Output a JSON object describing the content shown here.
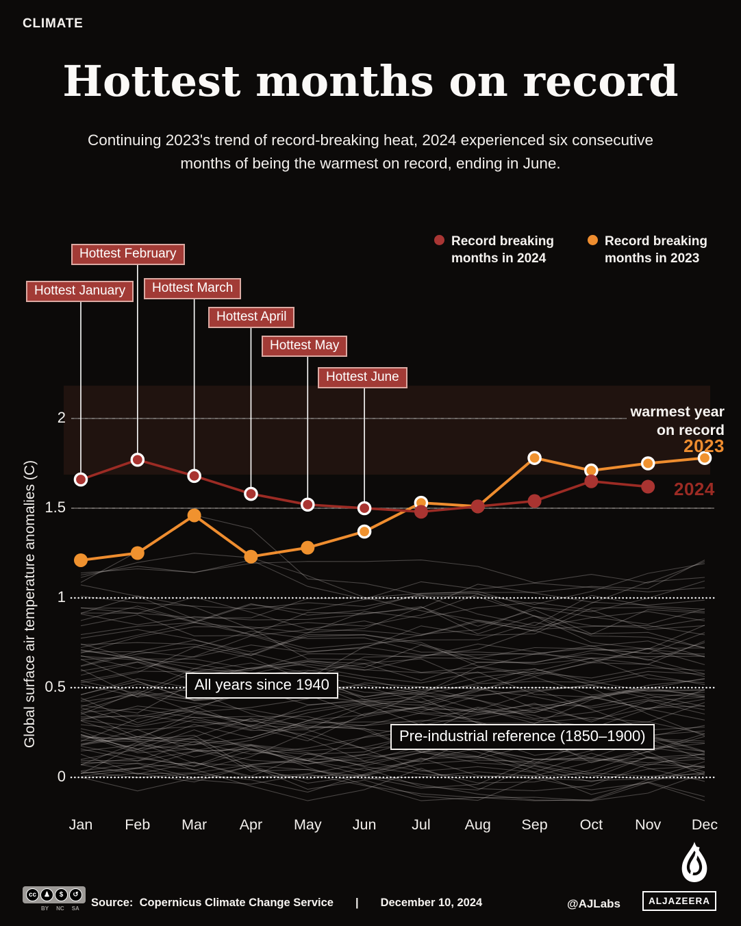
{
  "page": {
    "kicker": "CLIMATE",
    "title": "Hottest months on record",
    "subtitle": "Continuing 2023's trend of record-breaking heat, 2024 experienced six consecutive\nmonths of being the warmest on record, ending in June."
  },
  "legend": {
    "items": [
      {
        "label": "Record breaking months in 2024",
        "color": "#a93634"
      },
      {
        "label": "Record breaking months in 2023",
        "color": "#ef8d2f"
      }
    ]
  },
  "callouts": [
    {
      "label": "Hottest January",
      "month": 0
    },
    {
      "label": "Hottest February",
      "month": 1
    },
    {
      "label": "Hottest March",
      "month": 2
    },
    {
      "label": "Hottest April",
      "month": 3
    },
    {
      "label": "Hottest May",
      "month": 4
    },
    {
      "label": "Hottest June",
      "month": 5
    }
  ],
  "callout_style": {
    "bg": "#a23b36",
    "border": "#dcaaa3"
  },
  "annotations": {
    "warmest": "warmest year\non record",
    "year_2023": "2023",
    "year_2024": "2024",
    "all_years": "All years since 1940",
    "preindustrial": "Pre-industrial reference (1850–1900)"
  },
  "chart_data": {
    "type": "line",
    "title": "Hottest months on record",
    "ylabel": "Global surface air temperature anomalies (C)",
    "x_categories": [
      "Jan",
      "Feb",
      "Mar",
      "Apr",
      "May",
      "Jun",
      "Jul",
      "Aug",
      "Sep",
      "Oct",
      "Nov",
      "Dec"
    ],
    "yticks": [
      {
        "value": 2,
        "label": "2",
        "style": "solid"
      },
      {
        "value": 1.5,
        "label": "1.5",
        "style": "solid"
      },
      {
        "value": 1,
        "label": "1",
        "style": "dotted"
      },
      {
        "value": 0.5,
        "label": "0.5",
        "style": "dotted"
      },
      {
        "value": 0,
        "label": "0",
        "style": "dotted"
      }
    ],
    "ylim": [
      -0.15,
      2.25
    ],
    "series": [
      {
        "name": "2023",
        "color": "#ef8d2f",
        "dot_color": "#f0922f",
        "values": [
          1.21,
          1.25,
          1.46,
          1.23,
          1.28,
          1.37,
          1.53,
          1.51,
          1.78,
          1.71,
          1.75,
          1.78
        ],
        "record_breaking_months": [
          5,
          6,
          8,
          9,
          10,
          11
        ]
      },
      {
        "name": "2024",
        "color": "#9c2b24",
        "dot_color": "#a93431",
        "values": [
          1.66,
          1.77,
          1.68,
          1.58,
          1.52,
          1.5,
          1.48,
          1.51,
          1.54,
          1.65,
          1.62,
          null
        ],
        "record_breaking_months": [
          0,
          1,
          2,
          3,
          4,
          5
        ]
      }
    ],
    "background_series": {
      "label": "All years since 1940",
      "year_start": 1940,
      "year_end": 2022,
      "color": "#c9c5c2",
      "opacity": 0.32,
      "seed": 11
    },
    "highlight_band": {
      "color": "#20130f",
      "y_from": 1.687,
      "y_to": 2.183
    },
    "grid_color": "#6f6b68",
    "dotted_color": "#ffffff",
    "reference_label": "Pre-industrial reference (1850–1900)"
  },
  "footer": {
    "badge": {
      "cc_glyph": "cc",
      "by_glyph": "♟",
      "nc_glyph": "$",
      "sa_glyph": "↺",
      "labels": [
        "BY",
        "NC",
        "SA"
      ]
    },
    "source_label": "Source:",
    "source_value": "Copernicus Climate Change Service",
    "separator": "|",
    "date": "December 10, 2024",
    "credit": "@AJLabs",
    "brand": "ALJAZEERA"
  }
}
